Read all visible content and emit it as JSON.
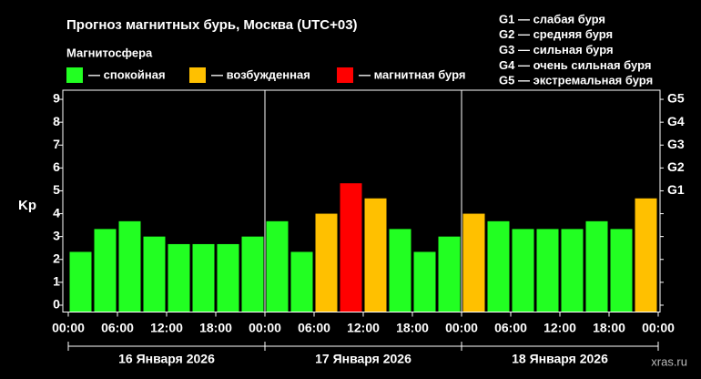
{
  "chart_data": {
    "type": "bar",
    "title": "Прогноз магнитных бурь, Москва (UTC+03)",
    "legend_title": "Магнитосфера",
    "legend": [
      {
        "label": "— спокойная",
        "color": "#22ff22"
      },
      {
        "label": "— возбужденная",
        "color": "#ffc000"
      },
      {
        "label": "— магнитная буря",
        "color": "#ff0000"
      }
    ],
    "storm_scale": [
      "G1 — слабая буря",
      "G2 — средняя буря",
      "G3 — сильная буря",
      "G4 — очень сильная буря",
      "G5 — экстремальная буря"
    ],
    "y_label": "Kp",
    "x": [
      0,
      3,
      6,
      9,
      12,
      15,
      18,
      21,
      24,
      27,
      30,
      33,
      36,
      39,
      42,
      45,
      48,
      51,
      54,
      57,
      60,
      63,
      66,
      69
    ],
    "bar_width": 3,
    "values": [
      2.33,
      3.33,
      3.67,
      3,
      2.67,
      2.67,
      2.67,
      3,
      3.67,
      2.33,
      4,
      5.33,
      4.67,
      3.33,
      2.33,
      3,
      4,
      3.67,
      3.33,
      3.33,
      3.33,
      3.67,
      3.33,
      4.67
    ],
    "colors": [
      "#22ff22",
      "#22ff22",
      "#22ff22",
      "#22ff22",
      "#22ff22",
      "#22ff22",
      "#22ff22",
      "#22ff22",
      "#22ff22",
      "#22ff22",
      "#ffc000",
      "#ff0000",
      "#ffc000",
      "#22ff22",
      "#22ff22",
      "#22ff22",
      "#ffc000",
      "#22ff22",
      "#22ff22",
      "#22ff22",
      "#22ff22",
      "#22ff22",
      "#22ff22",
      "#ffc000"
    ],
    "xlim": [
      0,
      72
    ],
    "xticks": [
      {
        "value": 0,
        "label": "00:00"
      },
      {
        "value": 6,
        "label": "06:00"
      },
      {
        "value": 12,
        "label": "12:00"
      },
      {
        "value": 18,
        "label": "18:00"
      },
      {
        "value": 24,
        "label": "00:00"
      },
      {
        "value": 30,
        "label": "06:00"
      },
      {
        "value": 36,
        "label": "12:00"
      },
      {
        "value": 42,
        "label": "18:00"
      },
      {
        "value": 48,
        "label": "00:00"
      },
      {
        "value": 54,
        "label": "06:00"
      },
      {
        "value": 60,
        "label": "12:00"
      },
      {
        "value": 66,
        "label": "18:00"
      },
      {
        "value": 72,
        "label": "00:00"
      }
    ],
    "ylim": [
      -0.3,
      9.4
    ],
    "yticks": [
      0,
      1,
      2,
      3,
      4,
      5,
      6,
      7,
      8,
      9
    ],
    "y2ticks": [
      {
        "value": 5,
        "label": "G1"
      },
      {
        "value": 6,
        "label": "G2"
      },
      {
        "value": 7,
        "label": "G3"
      },
      {
        "value": 8,
        "label": "G4"
      },
      {
        "value": 9,
        "label": "G5"
      }
    ],
    "days": [
      {
        "label": "16 Января 2026",
        "range": [
          0,
          24
        ]
      },
      {
        "label": "17 Января 2026",
        "range": [
          24,
          48
        ]
      },
      {
        "label": "18 Января 2026",
        "range": [
          48,
          72
        ]
      }
    ],
    "watermark": "xras.ru"
  }
}
